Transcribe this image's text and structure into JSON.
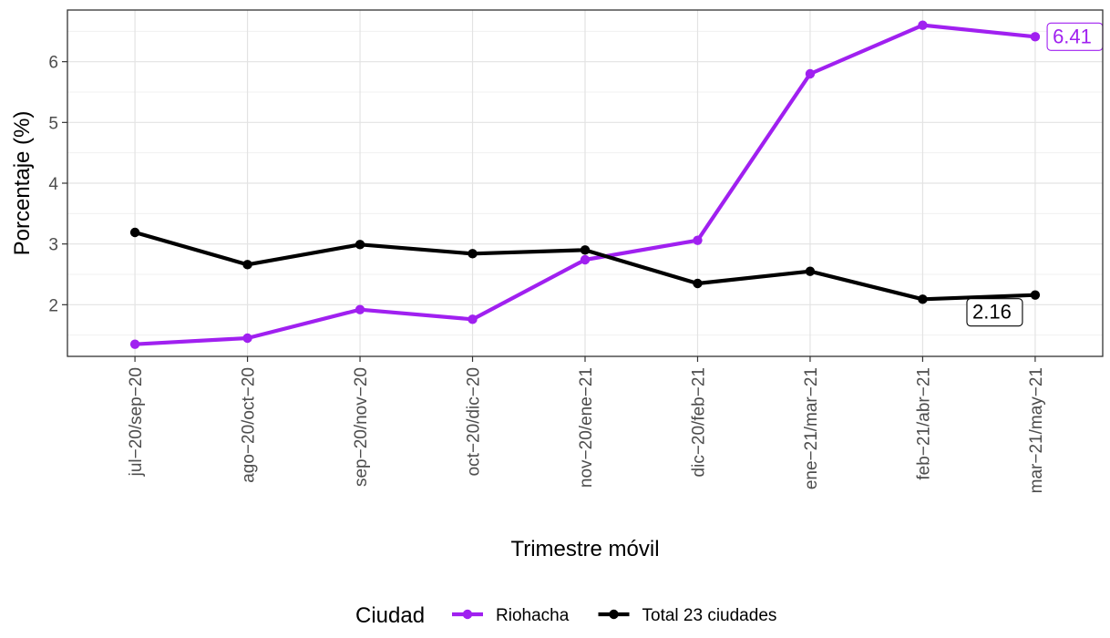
{
  "chart_data": {
    "type": "line",
    "title": "",
    "xlabel": "Trimestre móvil",
    "ylabel": "Porcentaje (%)",
    "categories": [
      "jul−20/sep−20",
      "ago−20/oct−20",
      "sep−20/nov−20",
      "oct−20/dic−20",
      "nov−20/ene−21",
      "dic−20/feb−21",
      "ene−21/mar−21",
      "feb−21/abr−21",
      "mar−21/may−21"
    ],
    "series": [
      {
        "name": "Riohacha",
        "color": "#A020F0",
        "values": [
          1.35,
          1.45,
          1.92,
          1.76,
          2.74,
          3.06,
          5.8,
          6.6,
          6.41
        ],
        "end_label": "6.41"
      },
      {
        "name": "Total 23 ciudades",
        "color": "#000000",
        "values": [
          3.19,
          2.66,
          2.99,
          2.84,
          2.9,
          2.35,
          2.55,
          2.09,
          2.16
        ],
        "end_label": "2.16"
      }
    ],
    "ylim": [
      1.15,
      6.85
    ],
    "yticks": [
      2,
      3,
      4,
      5,
      6
    ],
    "grid": true,
    "legend": {
      "title": "Ciudad",
      "position": "bottom"
    }
  }
}
